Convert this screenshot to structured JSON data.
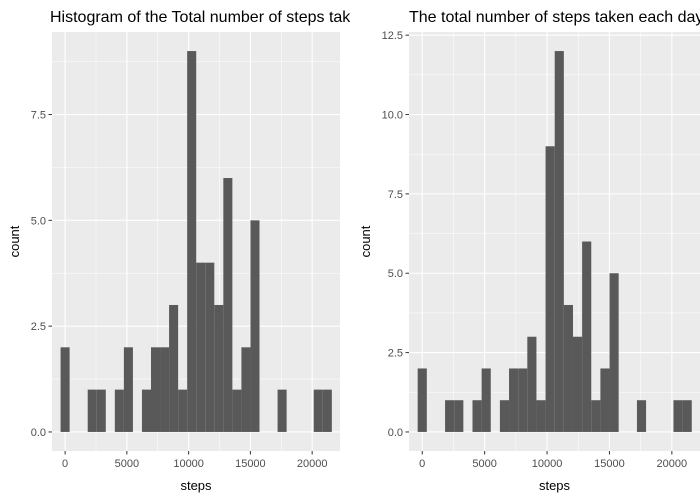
{
  "chart_data": [
    {
      "type": "bar",
      "title": "Histogram of the Total number of steps taken each day",
      "xlabel": "steps",
      "ylabel": "count",
      "xlim": [
        -1061,
        22255
      ],
      "ylim": [
        -0.45,
        9.45
      ],
      "xticks": [
        0,
        5000,
        10000,
        15000,
        20000
      ],
      "xtick_labels": [
        "0",
        "5000",
        "10000",
        "15000",
        "20000"
      ],
      "yticks": [
        0,
        2.5,
        5,
        7.5
      ],
      "ytick_labels": [
        "0.0",
        "2.5",
        "5.0",
        "7.5"
      ],
      "grid": true,
      "bin_width": 732,
      "bins": [
        {
          "x": 0,
          "count": 2
        },
        {
          "x": 732,
          "count": 0
        },
        {
          "x": 1464,
          "count": 0
        },
        {
          "x": 2196,
          "count": 1
        },
        {
          "x": 2928,
          "count": 1
        },
        {
          "x": 3660,
          "count": 0
        },
        {
          "x": 4392,
          "count": 1
        },
        {
          "x": 5124,
          "count": 2
        },
        {
          "x": 5856,
          "count": 0
        },
        {
          "x": 6588,
          "count": 1
        },
        {
          "x": 7320,
          "count": 2
        },
        {
          "x": 8052,
          "count": 2
        },
        {
          "x": 8784,
          "count": 3
        },
        {
          "x": 9516,
          "count": 1
        },
        {
          "x": 10248,
          "count": 9
        },
        {
          "x": 10980,
          "count": 4
        },
        {
          "x": 11712,
          "count": 4
        },
        {
          "x": 12444,
          "count": 3
        },
        {
          "x": 13176,
          "count": 6
        },
        {
          "x": 13908,
          "count": 1
        },
        {
          "x": 14640,
          "count": 2
        },
        {
          "x": 15372,
          "count": 5
        },
        {
          "x": 16104,
          "count": 0
        },
        {
          "x": 16836,
          "count": 0
        },
        {
          "x": 17568,
          "count": 1
        },
        {
          "x": 18300,
          "count": 0
        },
        {
          "x": 19032,
          "count": 0
        },
        {
          "x": 19764,
          "count": 0
        },
        {
          "x": 20496,
          "count": 1
        },
        {
          "x": 21228,
          "count": 1
        }
      ]
    },
    {
      "type": "bar",
      "title": "The total number of steps taken each day",
      "xlabel": "steps",
      "ylabel": "count",
      "xlim": [
        -1061,
        22255
      ],
      "ylim": [
        -0.6,
        12.6
      ],
      "xticks": [
        0,
        5000,
        10000,
        15000,
        20000
      ],
      "xtick_labels": [
        "0",
        "5000",
        "10000",
        "15000",
        "20000"
      ],
      "yticks": [
        0,
        2.5,
        5,
        7.5,
        10,
        12.5
      ],
      "ytick_labels": [
        "0.0",
        "2.5",
        "5.0",
        "7.5",
        "10.0",
        "12.5"
      ],
      "grid": true,
      "bin_width": 732,
      "bins": [
        {
          "x": 0,
          "count": 2
        },
        {
          "x": 732,
          "count": 0
        },
        {
          "x": 1464,
          "count": 0
        },
        {
          "x": 2196,
          "count": 1
        },
        {
          "x": 2928,
          "count": 1
        },
        {
          "x": 3660,
          "count": 0
        },
        {
          "x": 4392,
          "count": 1
        },
        {
          "x": 5124,
          "count": 2
        },
        {
          "x": 5856,
          "count": 0
        },
        {
          "x": 6588,
          "count": 1
        },
        {
          "x": 7320,
          "count": 2
        },
        {
          "x": 8052,
          "count": 2
        },
        {
          "x": 8784,
          "count": 3
        },
        {
          "x": 9516,
          "count": 1
        },
        {
          "x": 10248,
          "count": 9
        },
        {
          "x": 10980,
          "count": 12
        },
        {
          "x": 11712,
          "count": 4
        },
        {
          "x": 12444,
          "count": 3
        },
        {
          "x": 13176,
          "count": 6
        },
        {
          "x": 13908,
          "count": 1
        },
        {
          "x": 14640,
          "count": 2
        },
        {
          "x": 15372,
          "count": 5
        },
        {
          "x": 16104,
          "count": 0
        },
        {
          "x": 16836,
          "count": 0
        },
        {
          "x": 17568,
          "count": 1
        },
        {
          "x": 18300,
          "count": 0
        },
        {
          "x": 19032,
          "count": 0
        },
        {
          "x": 19764,
          "count": 0
        },
        {
          "x": 20496,
          "count": 1
        },
        {
          "x": 21228,
          "count": 1
        }
      ]
    }
  ],
  "colors": {
    "panel_background": "#ebebeb",
    "grid_major": "#ffffff",
    "bar_fill": "#595959",
    "tick_mark": "#333333"
  }
}
